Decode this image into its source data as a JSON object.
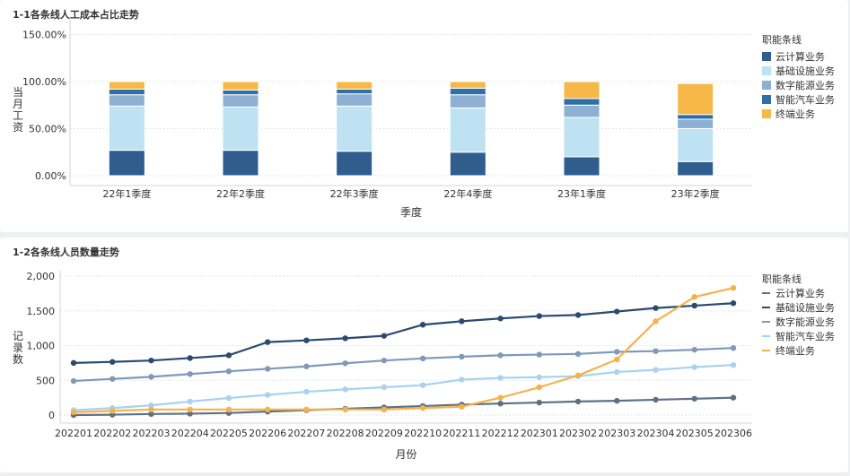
{
  "panel1": {
    "title": "1-1各条线人工成本占比走势"
  },
  "panel2": {
    "title": "1-2各条线人员数量走势"
  },
  "colors": {
    "云计算业务": "#2e5d8e",
    "基础设施业务": "#bfe2f2",
    "数字能源业务": "#8eb0d2",
    "智能汽车业务": "#2f6fa5",
    "终端业务": "#f7b84a",
    "line_基础设施业务": "#2b4a6f",
    "line_数字能源业务": "#7f99b9",
    "line_智能汽车业务": "#a8d2ee",
    "line_云计算业务": "#5f7086",
    "line_终端业务": "#f5b24a"
  },
  "chart_data": [
    {
      "type": "bar",
      "stacked": true,
      "xlabel": "季度",
      "ylabel": "当月工资",
      "y_ticks": [
        "0.00%",
        "50.00%",
        "100.00%",
        "150.00%"
      ],
      "ylim": [
        0,
        1.5
      ],
      "grid": true,
      "legend_title": "职能条线",
      "legend_position": "right",
      "categories": [
        "22年1季度",
        "22年2季度",
        "22年3季度",
        "22年4季度",
        "23年1季度",
        "23年2季度"
      ],
      "series": [
        {
          "name": "云计算业务",
          "values": [
            0.27,
            0.27,
            0.26,
            0.25,
            0.2,
            0.15
          ]
        },
        {
          "name": "基础设施业务",
          "values": [
            0.47,
            0.46,
            0.48,
            0.47,
            0.42,
            0.35
          ]
        },
        {
          "name": "数字能源业务",
          "values": [
            0.12,
            0.13,
            0.13,
            0.14,
            0.13,
            0.1
          ]
        },
        {
          "name": "智能汽车业务",
          "values": [
            0.06,
            0.05,
            0.05,
            0.07,
            0.07,
            0.05
          ]
        },
        {
          "name": "终端业务",
          "values": [
            0.08,
            0.09,
            0.08,
            0.07,
            0.18,
            0.33
          ]
        }
      ]
    },
    {
      "type": "line",
      "xlabel": "月份",
      "ylabel": "记录数",
      "y_ticks": [
        "0",
        "500",
        "1,000",
        "1,500",
        "2,000"
      ],
      "ylim": [
        0,
        2000
      ],
      "grid": true,
      "legend_title": "职能条线",
      "legend_position": "right",
      "x": [
        "202201",
        "202202",
        "202203",
        "202204",
        "202205",
        "202206",
        "202207",
        "202208",
        "202209",
        "202210",
        "202211",
        "202212",
        "202301",
        "202302",
        "202303",
        "202304",
        "202305",
        "202306"
      ],
      "series": [
        {
          "name": "云计算业务",
          "values": [
            0,
            5,
            15,
            20,
            30,
            50,
            70,
            90,
            110,
            130,
            150,
            165,
            180,
            195,
            205,
            220,
            235,
            250
          ]
        },
        {
          "name": "基础设施业务",
          "values": [
            750,
            765,
            785,
            820,
            860,
            1050,
            1075,
            1105,
            1140,
            1300,
            1350,
            1390,
            1425,
            1440,
            1490,
            1540,
            1575,
            1610
          ]
        },
        {
          "name": "数字能源业务",
          "values": [
            490,
            520,
            550,
            590,
            630,
            665,
            700,
            745,
            785,
            815,
            840,
            860,
            870,
            880,
            910,
            920,
            940,
            965
          ]
        },
        {
          "name": "智能汽车业务",
          "values": [
            70,
            100,
            140,
            195,
            245,
            290,
            335,
            370,
            400,
            430,
            510,
            535,
            545,
            560,
            620,
            650,
            690,
            720
          ]
        },
        {
          "name": "终端业务",
          "values": [
            40,
            60,
            80,
            80,
            80,
            80,
            80,
            80,
            80,
            100,
            120,
            250,
            400,
            570,
            800,
            1350,
            1700,
            1830
          ]
        }
      ]
    }
  ]
}
